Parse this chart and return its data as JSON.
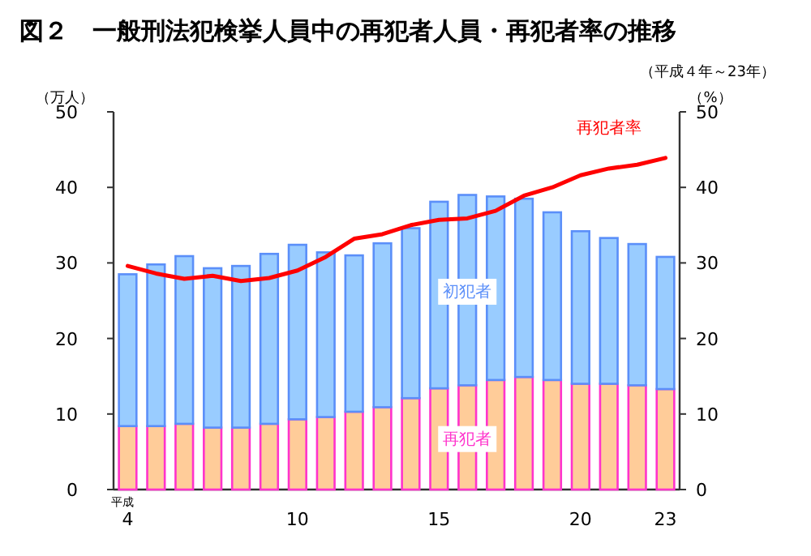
{
  "chart_data": {
    "type": "bar",
    "stacked": true,
    "title": "図２　一般刑法犯検挙人員中の再犯者人員・再犯者率の推移",
    "subtitle": "（平成４年～23年）",
    "ylabel": "（万人）",
    "y2label": "（%）",
    "annotations": [
      "平成"
    ],
    "categories": [
      "4",
      null,
      null,
      null,
      null,
      null,
      "10",
      null,
      null,
      null,
      null,
      "15",
      null,
      null,
      null,
      null,
      "20",
      null,
      null,
      "23"
    ],
    "series": [
      {
        "name": "再犯者",
        "color": "#ffcc99",
        "values": [
          8.4,
          8.4,
          8.7,
          8.2,
          8.2,
          8.7,
          9.3,
          9.6,
          10.3,
          10.9,
          12.1,
          13.4,
          13.8,
          14.5,
          14.9,
          14.5,
          14.0,
          14.0,
          13.8,
          13.3
        ]
      },
      {
        "name": "初犯者",
        "color": "#99ccff",
        "values": [
          20.1,
          21.4,
          22.2,
          21.1,
          21.4,
          22.5,
          23.1,
          21.8,
          20.7,
          21.7,
          22.5,
          24.7,
          25.2,
          24.3,
          23.6,
          22.2,
          20.2,
          19.3,
          18.7,
          17.5
        ]
      },
      {
        "name": "再犯者率",
        "type": "line",
        "axis": "y2",
        "color": "#ff0000",
        "values": [
          29.6,
          28.6,
          27.9,
          28.3,
          27.6,
          28.0,
          29.0,
          30.8,
          33.2,
          33.8,
          35.0,
          35.7,
          35.9,
          36.9,
          38.9,
          40.0,
          41.6,
          42.5,
          43.0,
          43.9
        ]
      }
    ],
    "ylim": [
      0,
      50
    ],
    "yticks": [
      0,
      10,
      20,
      30,
      40,
      50
    ],
    "y2lim": [
      0,
      50
    ],
    "y2ticks": [
      0,
      10,
      20,
      30,
      40,
      50
    ]
  }
}
